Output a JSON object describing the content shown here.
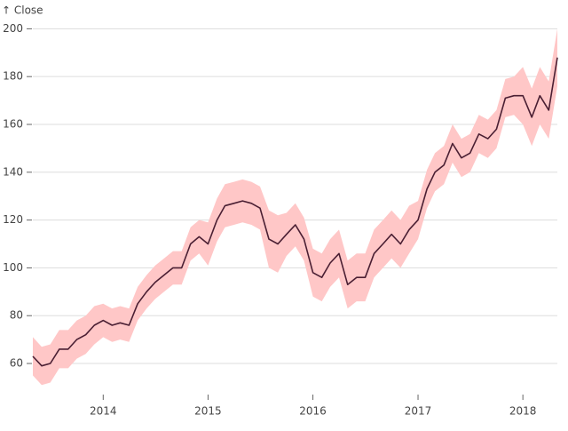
{
  "chart_data": {
    "type": "line",
    "y_label": "↑ Close",
    "x": [
      "2013-05",
      "2013-06",
      "2013-07",
      "2013-08",
      "2013-09",
      "2013-10",
      "2013-11",
      "2013-12",
      "2014-01",
      "2014-02",
      "2014-03",
      "2014-04",
      "2014-05",
      "2014-06",
      "2014-07",
      "2014-08",
      "2014-09",
      "2014-10",
      "2014-11",
      "2014-12",
      "2015-01",
      "2015-02",
      "2015-03",
      "2015-04",
      "2015-05",
      "2015-06",
      "2015-07",
      "2015-08",
      "2015-09",
      "2015-10",
      "2015-11",
      "2015-12",
      "2016-01",
      "2016-02",
      "2016-03",
      "2016-04",
      "2016-05",
      "2016-06",
      "2016-07",
      "2016-08",
      "2016-09",
      "2016-10",
      "2016-11",
      "2016-12",
      "2017-01",
      "2017-02",
      "2017-03",
      "2017-04",
      "2017-05",
      "2017-06",
      "2017-07",
      "2017-08",
      "2017-09",
      "2017-10",
      "2017-11",
      "2017-12",
      "2018-01",
      "2018-02",
      "2018-03",
      "2018-04",
      "2018-05"
    ],
    "values": [
      63,
      59,
      60,
      66,
      66,
      70,
      72,
      76,
      78,
      76,
      77,
      76,
      85,
      90,
      94,
      97,
      100,
      100,
      110,
      113,
      110,
      120,
      126,
      127,
      128,
      127,
      125,
      112,
      110,
      114,
      118,
      112,
      98,
      96,
      102,
      106,
      93,
      96,
      96,
      106,
      110,
      114,
      110,
      116,
      120,
      133,
      140,
      143,
      152,
      146,
      148,
      156,
      154,
      158,
      171,
      172,
      172,
      163,
      172,
      166,
      188
    ],
    "color": "#4a1f33",
    "band": {
      "color": "#ffc7c7",
      "upper": [
        71,
        67,
        68,
        74,
        74,
        78,
        80,
        84,
        85,
        83,
        84,
        83,
        92,
        97,
        101,
        104,
        107,
        107,
        117,
        120,
        119,
        129,
        135,
        136,
        137,
        136,
        134,
        124,
        122,
        123,
        127,
        121,
        108,
        106,
        112,
        116,
        103,
        106,
        106,
        116,
        120,
        124,
        120,
        126,
        128,
        141,
        148,
        151,
        160,
        154,
        156,
        164,
        162,
        166,
        179,
        180,
        184,
        175,
        184,
        178,
        200
      ],
      "lower": [
        55,
        51,
        52,
        58,
        58,
        62,
        64,
        68,
        71,
        69,
        70,
        69,
        78,
        83,
        87,
        90,
        93,
        93,
        103,
        106,
        101,
        111,
        117,
        118,
        119,
        118,
        116,
        100,
        98,
        105,
        109,
        103,
        88,
        86,
        92,
        96,
        83,
        86,
        86,
        96,
        100,
        104,
        100,
        106,
        112,
        125,
        132,
        135,
        144,
        138,
        140,
        148,
        146,
        150,
        163,
        164,
        160,
        151,
        160,
        154,
        176
      ]
    },
    "xlim": [
      "2013-05",
      "2018-05"
    ],
    "xticks": [
      "2014",
      "2015",
      "2016",
      "2017",
      "2018"
    ],
    "ylim": [
      47,
      202
    ],
    "yticks": [
      60,
      80,
      100,
      120,
      140,
      160,
      180,
      200
    ],
    "grid": true
  }
}
